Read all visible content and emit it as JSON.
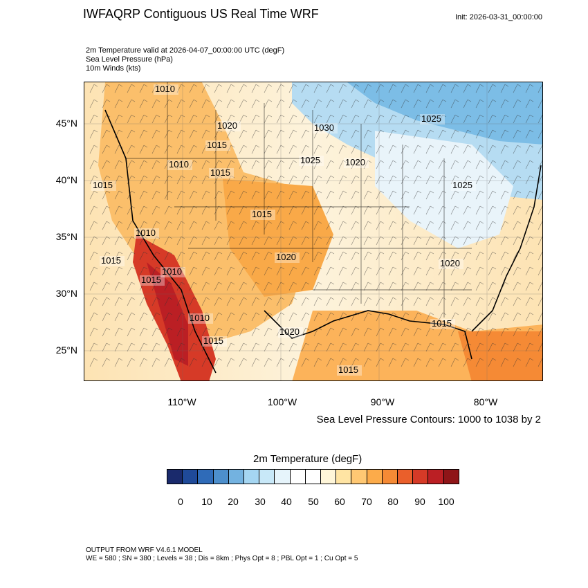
{
  "header": {
    "title": "IWFAQRP Contiguous US Real Time WRF",
    "init": "Init: 2026-03-31_00:00:00"
  },
  "fields": [
    "2m Temperature valid at 2026-04-07_00:00:00 UTC   (degF)",
    "Sea Level Pressure   (hPa)",
    "10m Winds   (kts)"
  ],
  "map": {
    "lat_labels": [
      "45°N",
      "40°N",
      "35°N",
      "30°N",
      "25°N"
    ],
    "lon_labels": [
      "110°W",
      "100°W",
      "90°W",
      "80°W"
    ],
    "isobar_labels": [
      "1010",
      "1020",
      "1030",
      "1025",
      "1015",
      "1010",
      "1025",
      "1020",
      "1015",
      "1025",
      "1015",
      "1015",
      "1015",
      "1010",
      "1020",
      "1015",
      "1010",
      "1020",
      "1010",
      "1015",
      "1020",
      "1015",
      "1015"
    ],
    "contour_note": "Sea Level Pressure Contours: 1000 to 1038 by 2"
  },
  "colorbar": {
    "title": "2m Temperature  (degF)",
    "colors": [
      "#1a2a6c",
      "#1f4a99",
      "#2f6bb8",
      "#4d8fcc",
      "#73b2e0",
      "#a5d6f2",
      "#c8e8f8",
      "#e6f4fb",
      "#ffffff",
      "#ffffff",
      "#fff6d9",
      "#ffe4a3",
      "#ffc873",
      "#fcab4a",
      "#f58a35",
      "#ea5f2b",
      "#d63a27",
      "#bb1f24",
      "#8f1518"
    ],
    "tick_labels": [
      "0",
      "10",
      "20",
      "30",
      "40",
      "50",
      "60",
      "70",
      "80",
      "90",
      "100"
    ]
  },
  "footer": {
    "line1": "OUTPUT FROM WRF V4.6.1 MODEL",
    "line2": "WE = 580 ; SN = 380 ; Levels = 38 ; Dis = 8km ; Phys Opt = 8 ; PBL Opt = 1 ; Cu Opt = 5"
  }
}
